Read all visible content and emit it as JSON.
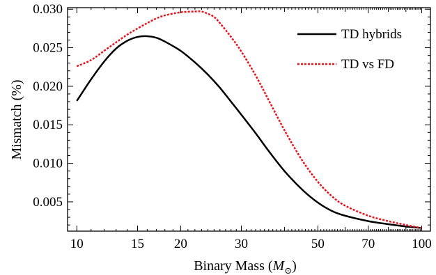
{
  "chart_data": {
    "type": "line",
    "xlabel": "Binary Mass (",
    "xlabel_symbol": "M",
    "xlabel_subscript": "⊙",
    "xlabel_close": ")",
    "ylabel": "Mismatch (%)",
    "xscale": "log",
    "xlim": [
      9.4,
      106
    ],
    "ylim": [
      0.0012,
      0.0302
    ],
    "xticks": [
      10,
      15,
      20,
      30,
      50,
      70,
      100
    ],
    "xtick_labels": [
      "10",
      "15",
      "20",
      "30",
      "50",
      "70",
      "100"
    ],
    "yticks": [
      0.005,
      0.01,
      0.015,
      0.02,
      0.025,
      0.03
    ],
    "ytick_labels": [
      "0.005",
      "0.010",
      "0.015",
      "0.020",
      "0.025",
      "0.030"
    ],
    "grid": false,
    "legend_position": "top-right",
    "series": [
      {
        "name": "TD hybrids",
        "color": "#000000",
        "dash": "solid",
        "x": [
          10,
          11,
          12,
          13,
          14,
          15,
          16,
          17,
          18,
          20,
          22,
          24,
          26,
          28,
          30,
          33,
          36,
          40,
          45,
          50,
          55,
          60,
          70,
          80,
          90,
          100
        ],
        "y": [
          0.0181,
          0.0209,
          0.0232,
          0.0249,
          0.0259,
          0.0264,
          0.0265,
          0.0263,
          0.0258,
          0.0246,
          0.0231,
          0.0215,
          0.0198,
          0.018,
          0.0163,
          0.0139,
          0.0116,
          0.009,
          0.0066,
          0.0049,
          0.0038,
          0.0032,
          0.0025,
          0.0021,
          0.0018,
          0.0016
        ]
      },
      {
        "name": "TD vs FD",
        "color": "#e8141e",
        "dash": "dotted",
        "x": [
          10,
          11,
          12,
          13,
          14,
          15,
          16,
          17,
          18,
          20,
          22,
          23,
          24,
          25,
          26,
          28,
          30,
          33,
          36,
          40,
          45,
          50,
          55,
          60,
          70,
          80,
          90,
          100
        ],
        "y": [
          0.0226,
          0.0234,
          0.0246,
          0.0257,
          0.0267,
          0.0275,
          0.0282,
          0.0288,
          0.0292,
          0.0296,
          0.0297,
          0.0297,
          0.0294,
          0.029,
          0.0282,
          0.0264,
          0.0245,
          0.0214,
          0.0182,
          0.0143,
          0.0104,
          0.0076,
          0.0057,
          0.0045,
          0.0032,
          0.0025,
          0.002,
          0.0016
        ]
      }
    ]
  }
}
